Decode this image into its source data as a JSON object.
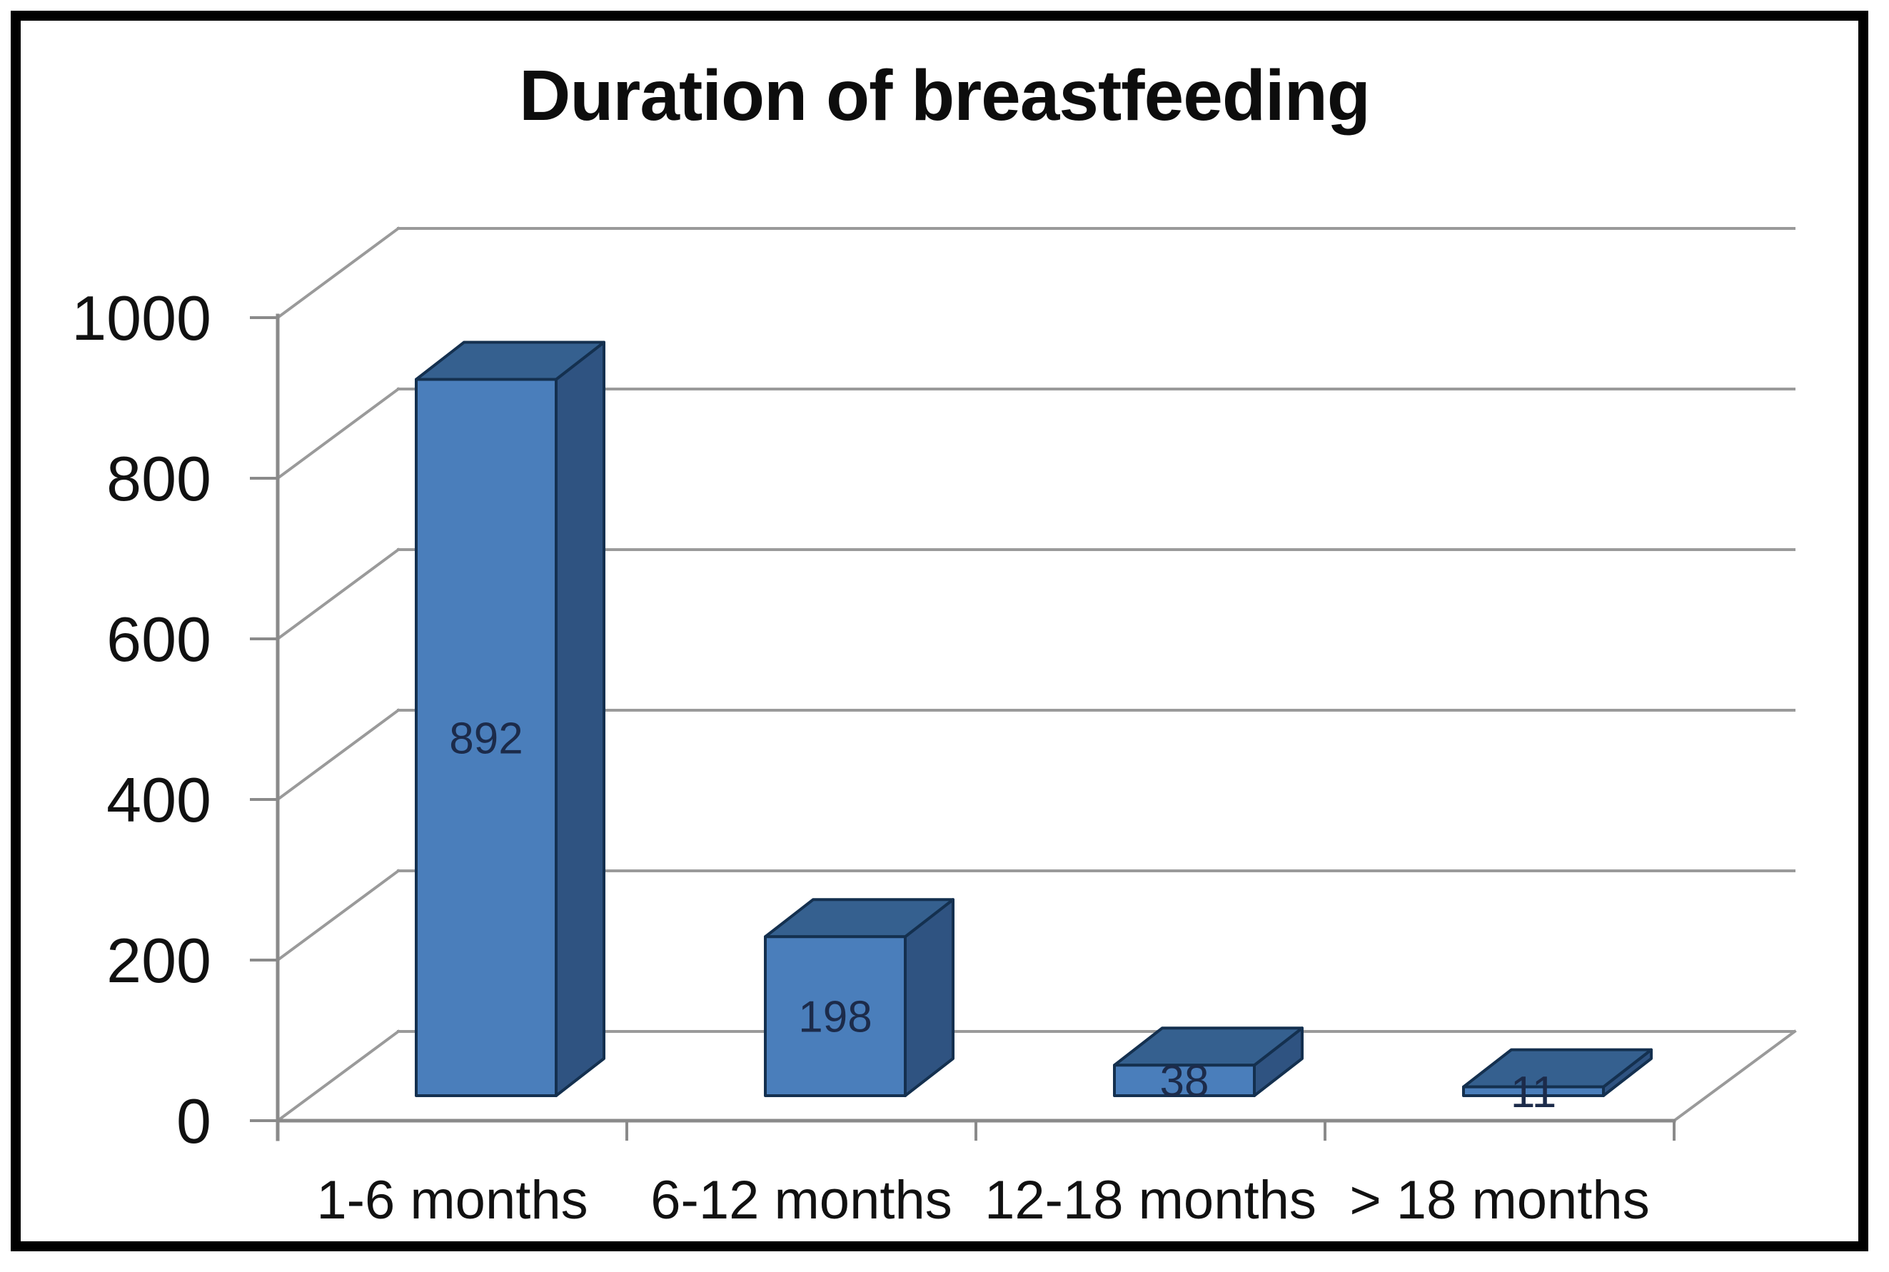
{
  "figure": {
    "title": "Duration of breastfeeding"
  },
  "chart_data": {
    "type": "bar",
    "style": "3d-column",
    "title": "Duration of breastfeeding",
    "categories": [
      "1-6 months",
      "6-12 months",
      "12-18 months",
      "> 18 months"
    ],
    "values": [
      892,
      198,
      38,
      11
    ],
    "data_labels": [
      "892",
      "198",
      "38",
      "11"
    ],
    "xlabel": "",
    "ylabel": "",
    "ylim": [
      0,
      1000
    ],
    "yticks": [
      0,
      200,
      400,
      600,
      800,
      1000
    ],
    "grid": true,
    "legend": "none",
    "colors": {
      "bar_front": "#4A7EBB",
      "bar_top": "#35608F",
      "bar_side": "#2F5381",
      "bar_outline": "#14304F",
      "gridline": "#9A9A9A",
      "axis": "#8A8A8A",
      "tick_label": "#111111",
      "category_label": "#111111",
      "data_label": "#1C2B4A",
      "title_color": "#0d0d0d",
      "background": "#FFFFFF",
      "frame": "#000000"
    }
  }
}
